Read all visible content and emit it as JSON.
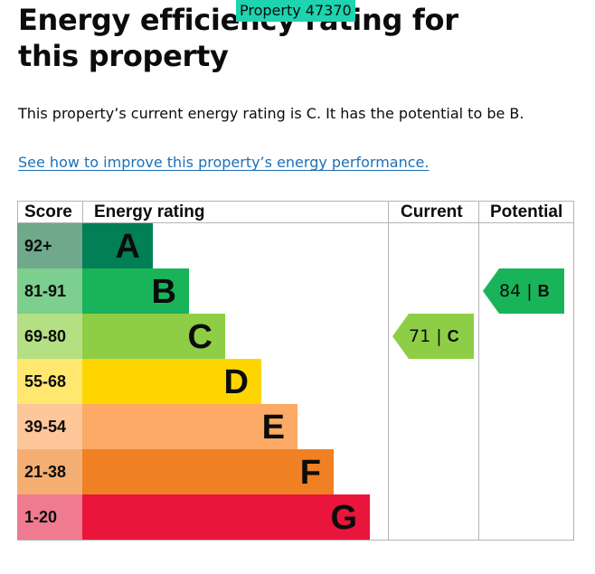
{
  "page": {
    "title": "Energy efficiency rating for this property",
    "tag_label": "Property 47370",
    "summary": "This property’s current energy rating is C. It has the potential to be B.",
    "improve_link": "See how to improve this property’s energy performance."
  },
  "chart": {
    "headers": {
      "score": "Score",
      "energy_rating": "Energy rating",
      "current": "Current",
      "potential": "Potential"
    },
    "bands": [
      {
        "score": "92+",
        "letter": "A",
        "color": "#008054",
        "score_bg": "#6fa88b"
      },
      {
        "score": "81-91",
        "letter": "B",
        "color": "#19b459",
        "score_bg": "#7ccf8e"
      },
      {
        "score": "69-80",
        "letter": "C",
        "color": "#8dce46",
        "score_bg": "#b5df83"
      },
      {
        "score": "55-68",
        "letter": "D",
        "color": "#ffd500",
        "score_bg": "#ffe770"
      },
      {
        "score": "39-54",
        "letter": "E",
        "color": "#fcaa65",
        "score_bg": "#fdc79a"
      },
      {
        "score": "21-38",
        "letter": "F",
        "color": "#ef8023",
        "score_bg": "#f4ae72"
      },
      {
        "score": "1-20",
        "letter": "G",
        "color": "#e9153b",
        "score_bg": "#f07a8f"
      }
    ],
    "current": {
      "value": "71",
      "separator": "|",
      "letter": "C",
      "color": "#8dce46"
    },
    "potential": {
      "value": "84",
      "separator": "|",
      "letter": "B",
      "color": "#19b459"
    }
  }
}
